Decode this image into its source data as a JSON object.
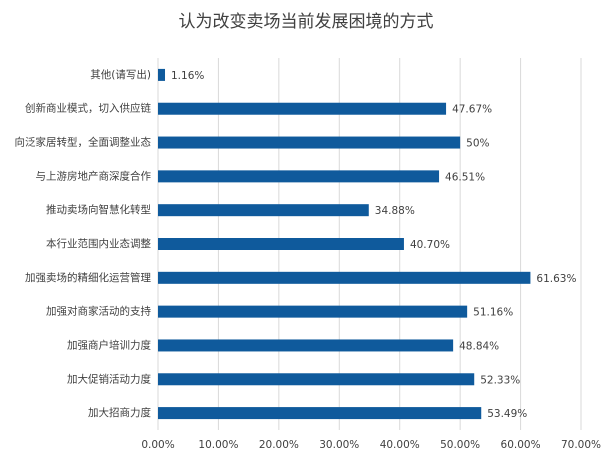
{
  "chart_data": {
    "type": "bar",
    "orientation": "horizontal",
    "title": "认为改变卖场当前发展困境的方式",
    "categories": [
      "其他(请写出)",
      "创新商业模式，切入供应链",
      "向泛家居转型，全面调整业态",
      "与上游房地产商深度合作",
      "推动卖场向智慧化转型",
      "本行业范围内业态调整",
      "加强卖场的精细化运营管理",
      "加强对商家活动的支持",
      "加强商户培训力度",
      "加大促销活动力度",
      "加大招商力度"
    ],
    "values": [
      1.16,
      47.67,
      50,
      46.51,
      34.88,
      40.7,
      61.63,
      51.16,
      48.84,
      52.33,
      53.49
    ],
    "value_labels": [
      "1.16%",
      "47.67%",
      "50%",
      "46.51%",
      "34.88%",
      "40.70%",
      "61.63%",
      "51.16%",
      "48.84%",
      "52.33%",
      "53.49%"
    ],
    "color": "#0f5a9c",
    "xlim": [
      0,
      70
    ],
    "xticks": [
      {
        "value": 0,
        "label": "0.00%"
      },
      {
        "value": 10,
        "label": "10.00%"
      },
      {
        "value": 20,
        "label": "20.00%"
      },
      {
        "value": 30,
        "label": "30.00%"
      },
      {
        "value": 40,
        "label": "40.00%"
      },
      {
        "value": 50,
        "label": "50.00%"
      },
      {
        "value": 60,
        "label": "60.00%"
      },
      {
        "value": 70,
        "label": "70.00%"
      }
    ],
    "grid": true
  }
}
